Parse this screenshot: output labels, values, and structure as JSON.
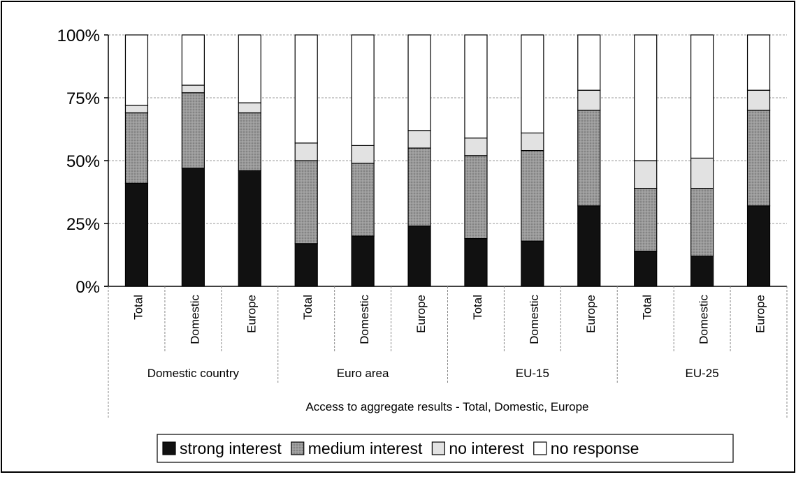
{
  "chart_data": {
    "type": "bar",
    "stacked": true,
    "normalized": true,
    "title": "",
    "xlabel": "Access to aggregate results - Total, Domestic, Europe",
    "ylabel": "",
    "ylim": [
      0,
      100
    ],
    "y_ticks": [
      "0%",
      "25%",
      "50%",
      "75%",
      "100%"
    ],
    "grid": true,
    "legend_position": "bottom",
    "groups": [
      "Domestic country",
      "Euro area",
      "EU-15",
      "EU-25"
    ],
    "categories": [
      "Total",
      "Domestic",
      "Europe",
      "Total",
      "Domestic",
      "Europe",
      "Total",
      "Domestic",
      "Europe",
      "Total",
      "Domestic",
      "Europe"
    ],
    "series": [
      {
        "name": "strong interest",
        "color": "#111111",
        "values": [
          41,
          47,
          46,
          17,
          20,
          24,
          19,
          18,
          32,
          14,
          12,
          32
        ]
      },
      {
        "name": "medium interest",
        "color": "#8c8c8c",
        "values": [
          28,
          30,
          23,
          33,
          29,
          31,
          33,
          36,
          38,
          25,
          27,
          38
        ]
      },
      {
        "name": "no interest",
        "color": "#dcdcdc",
        "values": [
          3,
          3,
          4,
          7,
          7,
          7,
          7,
          7,
          8,
          11,
          12,
          8
        ]
      },
      {
        "name": "no response",
        "color": "#ffffff",
        "values": [
          28,
          20,
          27,
          43,
          44,
          38,
          41,
          39,
          22,
          50,
          49,
          22
        ]
      }
    ]
  }
}
